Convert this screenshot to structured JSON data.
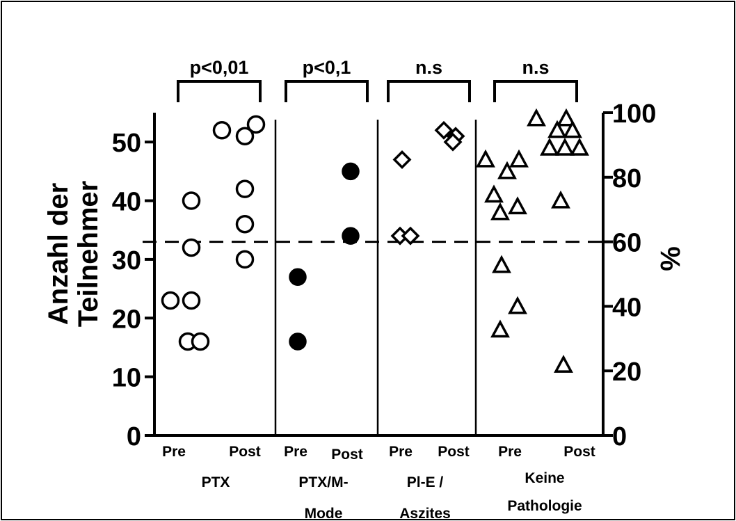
{
  "chart_data": {
    "type": "scatter",
    "ylabel_left": "Anzahl der Teilnehmer",
    "ylabel_right": "%",
    "ylim_left": [
      0,
      55
    ],
    "ylim_right": [
      0,
      100
    ],
    "yticks_left": [
      0,
      10,
      20,
      30,
      40,
      50
    ],
    "yticks_right": [
      0,
      20,
      40,
      60,
      80,
      100
    ],
    "reference_line_left": 32.3,
    "reference_line_right": 60,
    "groups": [
      {
        "label": "PTX",
        "label_lines": [
          "PTX"
        ],
        "marker": "open-circle",
        "significance": "p<0,01",
        "pre_label": "Pre",
        "post_label": "Post",
        "pre": [
          40,
          32,
          23,
          23,
          16,
          16
        ],
        "post": [
          52,
          51,
          53,
          42,
          36,
          30
        ]
      },
      {
        "label": "PTX/M-Mode",
        "label_lines": [
          "PTX/M-",
          "Mode"
        ],
        "marker": "filled-circle",
        "significance": "p<0,1",
        "pre_label": "Pre",
        "post_label": "Post",
        "pre": [
          27,
          16
        ],
        "post": [
          45,
          34
        ]
      },
      {
        "label": "Pl-E / Aszites",
        "label_lines": [
          "Pl-E /",
          "Aszites"
        ],
        "marker": "open-diamond",
        "significance": "n.s",
        "pre_label": "Pre",
        "post_label": "Post",
        "pre": [
          47,
          34,
          34
        ],
        "post": [
          52,
          51,
          50
        ]
      },
      {
        "label": "Keine Pathologie",
        "label_lines": [
          "Keine",
          "Pathologie"
        ],
        "marker": "open-triangle",
        "significance": "n.s",
        "pre_label": "Pre",
        "post_label": "Post",
        "pre": [
          47,
          41,
          45,
          47,
          38,
          39,
          29,
          22,
          18
        ],
        "post": [
          54,
          54,
          52,
          52,
          49,
          49,
          49,
          40,
          12
        ]
      }
    ]
  }
}
